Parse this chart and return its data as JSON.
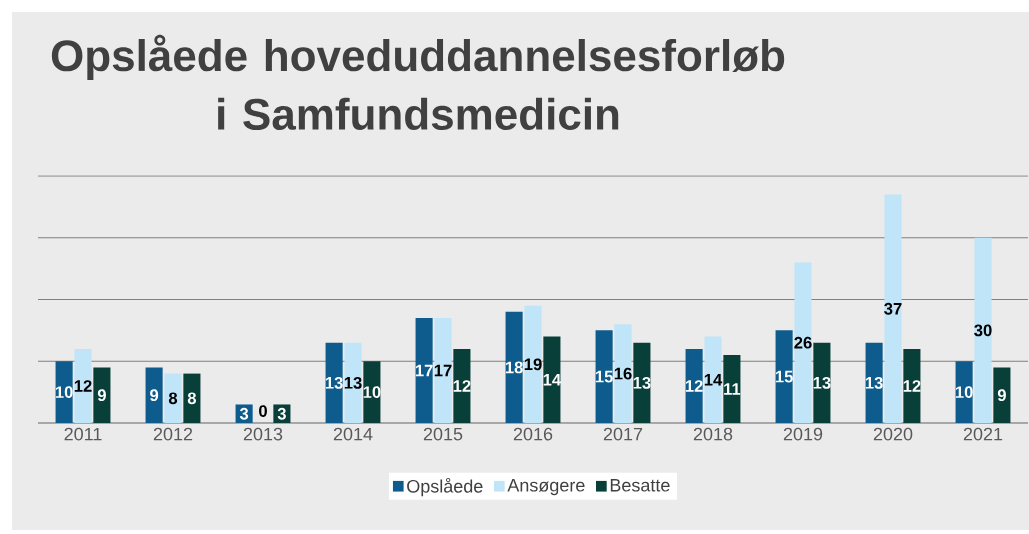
{
  "chart_data": {
    "type": "bar",
    "title": "Opslåede hoveduddannelsesforløb i Samfundsmedicin",
    "categories": [
      "2011",
      "2012",
      "2013",
      "2014",
      "2015",
      "2016",
      "2017",
      "2018",
      "2019",
      "2020",
      "2021"
    ],
    "series": [
      {
        "name": "Opslåede",
        "color": "#0e5c8d",
        "values": [
          10,
          9,
          3,
          13,
          17,
          18,
          15,
          12,
          15,
          13,
          10
        ]
      },
      {
        "name": "Ansøgere",
        "color": "#c0e4f8",
        "values": [
          12,
          8,
          0,
          13,
          17,
          19,
          16,
          14,
          26,
          37,
          30
        ]
      },
      {
        "name": "Besatte",
        "color": "#083f38",
        "values": [
          9,
          8,
          3,
          10,
          12,
          14,
          13,
          11,
          13,
          12,
          9
        ]
      }
    ],
    "ylim": [
      0,
      40
    ],
    "yticks": [
      0,
      10,
      20,
      30,
      40
    ],
    "grid": "y",
    "tick_labels": "x",
    "legend": "bottom",
    "data_labels": true
  }
}
